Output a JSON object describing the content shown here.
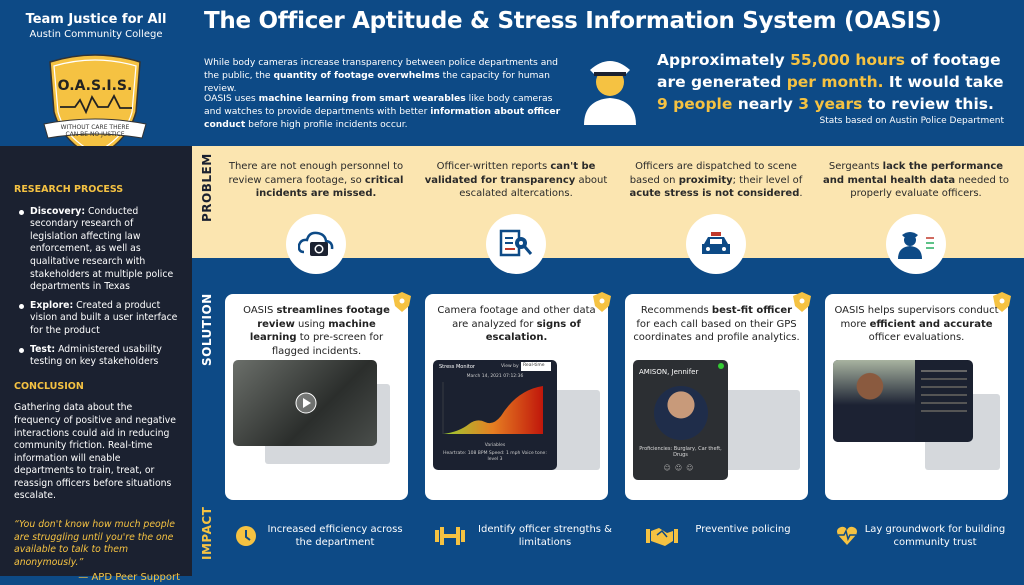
{
  "team": {
    "name": "Team Justice for All",
    "school": "Austin Community College"
  },
  "logo": {
    "text": "O.A.S.I.S.",
    "banner_line1": "WITHOUT CARE THERE",
    "banner_line2": "CAN BE NO JUSTICE"
  },
  "title": "The Officer Aptitude & Stress Information System (OASIS)",
  "intro": [
    [
      {
        "t": "While body cameras increase transparency between police departments and the public, the "
      },
      {
        "t": "quantity of footage overwhelms",
        "b": true
      },
      {
        "t": " the capacity for human review."
      }
    ],
    [
      {
        "t": "OASIS uses "
      },
      {
        "t": "machine learning from smart wearables",
        "b": true
      },
      {
        "t": " like body cameras and watches to provide departments with better "
      },
      {
        "t": "information about officer conduct",
        "b": true
      },
      {
        "t": " before high profile incidents occur."
      }
    ]
  ],
  "stat": [
    {
      "t": "Approximately "
    },
    {
      "t": "55,000 hours",
      "y": true
    },
    {
      "t": " of footage are generated "
    },
    {
      "t": "per month.",
      "y": true
    },
    {
      "t": " It would take "
    },
    {
      "t": "9 people",
      "y": true
    },
    {
      "t": " nearly "
    },
    {
      "t": "3 years",
      "y": true
    },
    {
      "t": " to review this."
    }
  ],
  "stat_source": "Stats based on Austin Police Department",
  "sidebar": {
    "research_heading": "RESEARCH PROCESS",
    "research": [
      [
        {
          "t": "Discovery:",
          "b": true
        },
        {
          "t": " Conducted secondary research of legislation affecting law enforcement, as well as qualitative research with stakeholders at multiple police departments in Texas"
        }
      ],
      [
        {
          "t": "Explore:",
          "b": true
        },
        {
          "t": " Created a product vision and built a user interface for the product"
        }
      ],
      [
        {
          "t": "Test:",
          "b": true
        },
        {
          "t": " Administered usability testing on key stakeholders"
        }
      ]
    ],
    "conclusion_heading": "CONCLUSION",
    "conclusion": "Gathering data about the frequency of positive and negative interactions could aid in reducing community friction. Real-time information will enable departments to train, treat, or reassign officers before situations escalate.",
    "quote": "“You don't know how much people are struggling until you're the one available to talk to them anonymously.”",
    "quote_attribution": "— APD Peer Support"
  },
  "labels": {
    "problem": "PROBLEM",
    "solution": "SOLUTION",
    "impact": "IMPACT"
  },
  "problems": [
    [
      {
        "t": "There are not enough personnel to review camera footage, so "
      },
      {
        "t": "critical incidents are missed.",
        "b": true
      }
    ],
    [
      {
        "t": "Officer-written reports "
      },
      {
        "t": "can't be validated for transparency",
        "b": true
      },
      {
        "t": " about escalated altercations."
      }
    ],
    [
      {
        "t": "Officers are dispatched to scene based on "
      },
      {
        "t": "proximity",
        "b": true
      },
      {
        "t": "; their level of "
      },
      {
        "t": "acute stress is not considered",
        "b": true
      },
      {
        "t": "."
      }
    ],
    [
      {
        "t": "Sergeants "
      },
      {
        "t": "lack the performance and mental health data",
        "b": true
      },
      {
        "t": " needed to properly evaluate officers."
      }
    ]
  ],
  "problem_icons": [
    "camera-cloud-icon",
    "report-search-icon",
    "police-car-icon",
    "officer-compare-icon"
  ],
  "solutions": [
    [
      {
        "t": "OASIS "
      },
      {
        "t": "streamlines footage review",
        "b": true
      },
      {
        "t": " using "
      },
      {
        "t": "machine learning",
        "b": true
      },
      {
        "t": " to pre-screen for flagged incidents."
      }
    ],
    [
      {
        "t": "Camera footage and other data are analyzed for "
      },
      {
        "t": "signs of escalation.",
        "b": true
      }
    ],
    [
      {
        "t": "Recommends "
      },
      {
        "t": "best-fit officer",
        "b": true
      },
      {
        "t": " for each call based on their GPS coordinates and profile analytics."
      }
    ],
    [
      {
        "t": "OASIS helps supervisors conduct more "
      },
      {
        "t": "efficient and accurate",
        "b": true
      },
      {
        "t": " officer evaluations."
      }
    ]
  ],
  "stress_monitor": {
    "title": "Stress Monitor",
    "view_by": "View by",
    "view_value": "Real-time",
    "datetime": "March 14, 2021    07:12:36",
    "x_label": "Variables",
    "footer": "Heartrate: 108 BPM     Speed: 1 mph     Voice tone: level 3"
  },
  "profile": {
    "name": "AMISON, Jennifer",
    "proficiencies": "Proficiencies: Burglary, Car theft, Drugs"
  },
  "impacts": [
    {
      "icon": "clock-icon",
      "text": "Increased efficiency across the department"
    },
    {
      "icon": "dumbbell-icon",
      "text": "Identify officer strengths & limitations"
    },
    {
      "icon": "handshake-icon",
      "text": "Preventive policing"
    },
    {
      "icon": "heart-pulse-icon",
      "text": "Lay groundwork for building community trust"
    }
  ],
  "colors": {
    "blue": "#0d4a86",
    "navy": "#1b2130",
    "cream": "#fbe5b0",
    "yellow": "#f5c242"
  }
}
